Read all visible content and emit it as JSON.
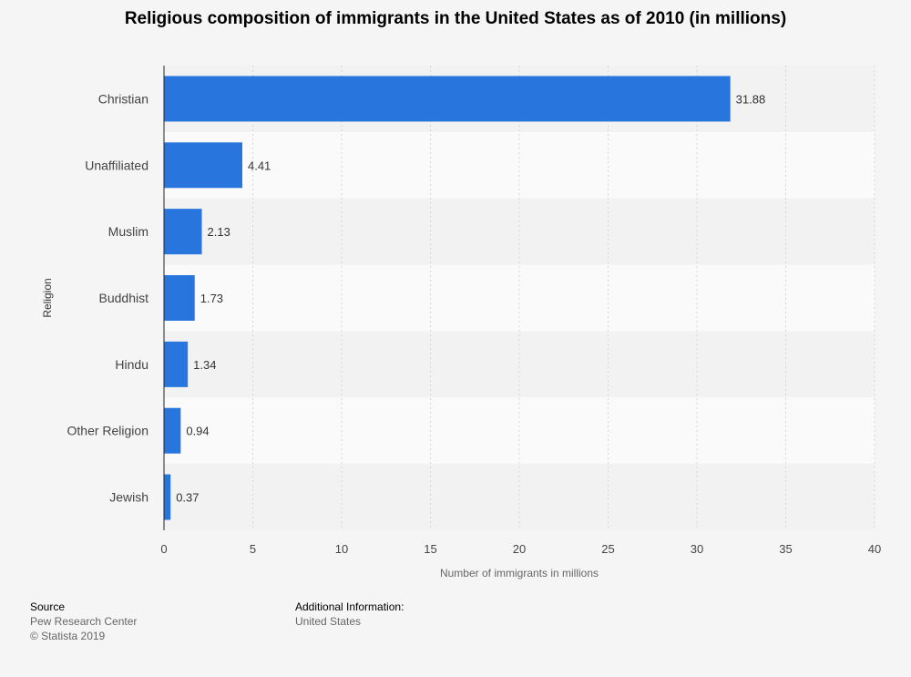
{
  "chart_data": {
    "type": "bar",
    "orientation": "horizontal",
    "title": "Religious composition of immigrants in the United States as of 2010 (in millions)",
    "xlabel": "Number of immigrants in millions",
    "ylabel": "Religion",
    "xlim": [
      0,
      40
    ],
    "xticks": [
      "0",
      "5",
      "10",
      "15",
      "20",
      "25",
      "30",
      "35",
      "40"
    ],
    "categories": [
      "Christian",
      "Unaffiliated",
      "Muslim",
      "Buddhist",
      "Hindu",
      "Other Religion",
      "Jewish"
    ],
    "values": [
      31.88,
      4.41,
      2.13,
      1.73,
      1.34,
      0.94,
      0.37
    ],
    "value_labels": [
      "31.88",
      "4.41",
      "2.13",
      "1.73",
      "1.34",
      "0.94",
      "0.37"
    ],
    "bar_color": "#2876dd",
    "grid": true
  },
  "footer": {
    "source_label": "Source",
    "source_lines": [
      "Pew Research Center",
      "© Statista 2019"
    ],
    "info_label": "Additional Information:",
    "info_lines": [
      "United States"
    ]
  }
}
